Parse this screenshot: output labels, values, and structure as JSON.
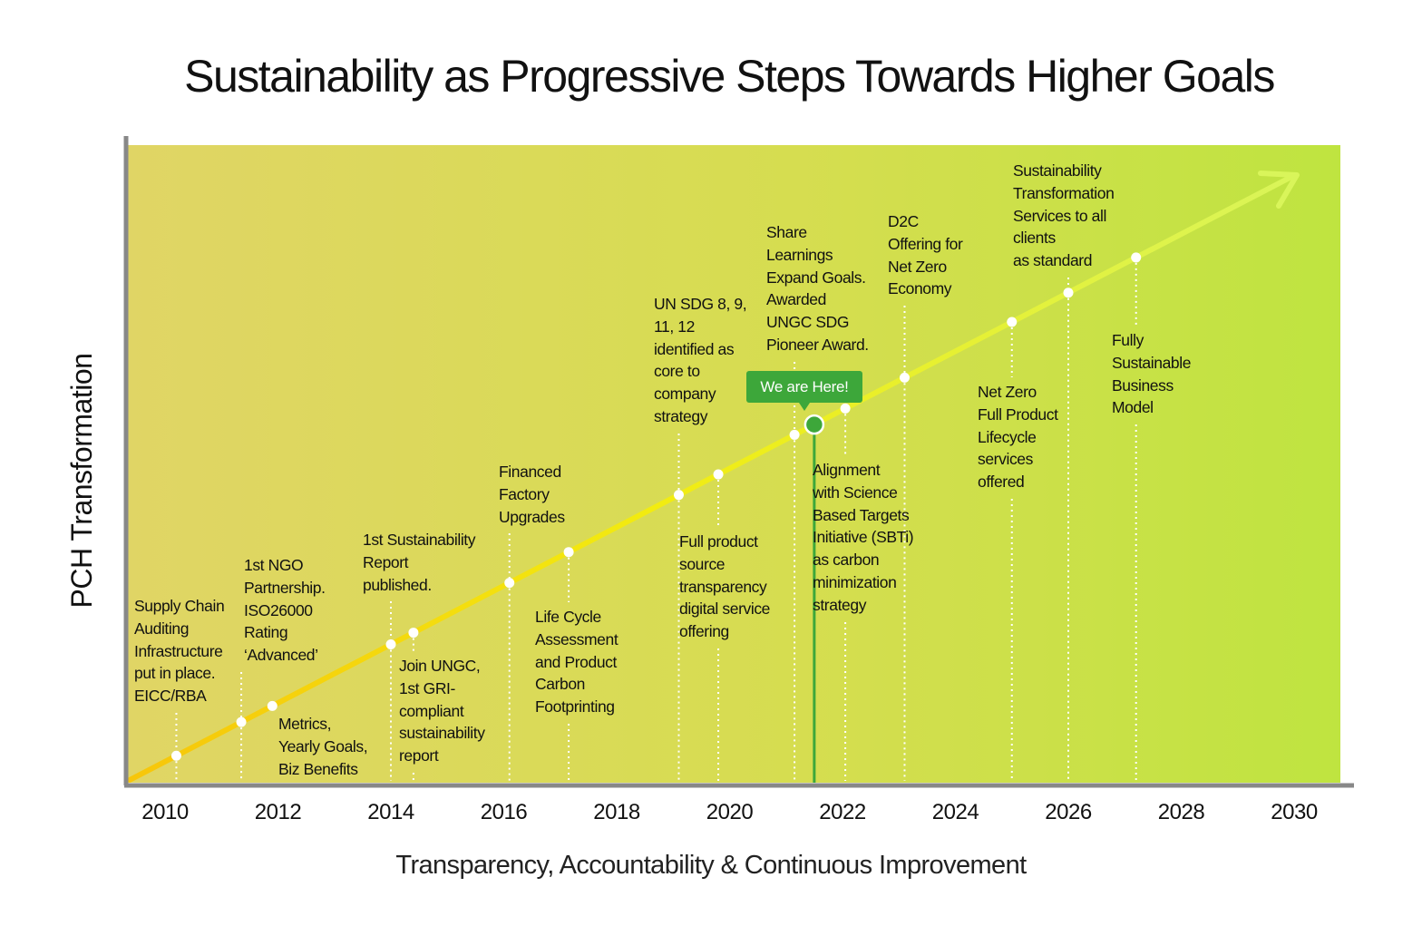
{
  "title": "Sustainability as Progressive Steps Towards Higher Goals",
  "y_axis_label": "PCH Transformation",
  "x_axis_label": "Transparency, Accountability & Continuous Improvement",
  "x_ticks": [
    "2010",
    "2012",
    "2014",
    "2016",
    "2018",
    "2020",
    "2022",
    "2024",
    "2026",
    "2028",
    "2030"
  ],
  "marker": {
    "label": "We are Here!",
    "year": 2021.5
  },
  "colors": {
    "bg_left": "#e0d565",
    "bg_right": "#bfe440",
    "line_start": "#f7c60a",
    "line_mid": "#f2ec10",
    "line_end": "#d9f55a",
    "marker": "#3da73a",
    "axis": "#888888"
  },
  "events": [
    {
      "year": 2010.2,
      "text": "Supply Chain\nAuditing\nInfrastructure\nput in place.\nEICC/RBA"
    },
    {
      "year": 2011.35,
      "text": "1st NGO\nPartnership.\nISO26000\nRating\n‘Advanced’"
    },
    {
      "year": 2011.9,
      "text": "Metrics,\nYearly Goals,\nBiz Benefits"
    },
    {
      "year": 2014.0,
      "text": "1st Sustainability\nReport\npublished."
    },
    {
      "year": 2014.4,
      "text": "Join UNGC,\n1st GRI-\ncompliant\nsustainability\nreport"
    },
    {
      "year": 2016.1,
      "text": "Financed\nFactory\nUpgrades"
    },
    {
      "year": 2017.15,
      "text": "Life Cycle\nAssessment\nand Product\nCarbon\nFootprinting"
    },
    {
      "year": 2019.1,
      "text": "UN SDG 8, 9,\n11, 12\nidentified as\ncore to\ncompany\nstrategy"
    },
    {
      "year": 2019.8,
      "text": "Full product\nsource\ntransparency\ndigital service\noffering"
    },
    {
      "year": 2021.15,
      "text": "Share\nLearnings\nExpand Goals.\nAwarded\nUNGC SDG\nPioneer Award."
    },
    {
      "year": 2022.05,
      "text": "Alignment\nwith Science\nBased Targets\nInitiative (SBTi)\nas carbon\nminimization\nstrategy"
    },
    {
      "year": 2023.1,
      "text": "D2C\nOffering for\nNet Zero\nEconomy"
    },
    {
      "year": 2025.0,
      "text": "Net Zero\nFull Product\nLifecycle\nservices\noffered"
    },
    {
      "year": 2026.0,
      "text": "Sustainability\nTransformation\nServices to all\nclients\nas standard"
    },
    {
      "year": 2027.2,
      "text": "Fully\nSustainable\nBusiness\nModel"
    }
  ]
}
